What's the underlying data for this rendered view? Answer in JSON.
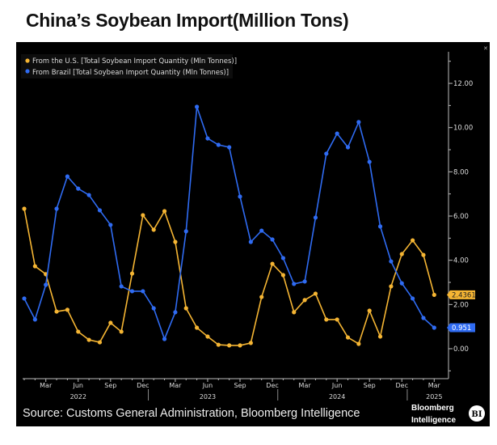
{
  "title": "China’s Soybean Import(Million Tons)",
  "source": "Source: Customs General Administration, Bloomberg Intelligence",
  "brand": {
    "line1": "Bloomberg",
    "line2": "Intelligence",
    "badge": "BI"
  },
  "chart_data": {
    "type": "line",
    "x_start": "2022-01",
    "x_end": "2025-03",
    "frequency": "monthly",
    "x_tick_labels": [
      "Mar",
      "Jun",
      "Sep",
      "Dec",
      "Mar",
      "Jun",
      "Sep",
      "Dec",
      "Mar",
      "Jun",
      "Sep",
      "Dec",
      "Mar"
    ],
    "x_year_labels": [
      "2022",
      "2023",
      "2024",
      "2025"
    ],
    "y_ticks": [
      "0.00",
      "2.00",
      "4.00",
      "6.00",
      "8.00",
      "10.00",
      "12.00"
    ],
    "ylim": [
      -1.2,
      13.4
    ],
    "y_axis_side": "right",
    "grid": false,
    "legend_position": "top-left",
    "series": [
      {
        "name": "From the U.S. [Total Soybean Import Quantity (Mln Tonnes)]",
        "color": "#f5b533",
        "last_value_label": "2.4361",
        "values": [
          6.33,
          3.73,
          3.37,
          1.68,
          1.76,
          0.77,
          0.4,
          0.29,
          1.17,
          0.77,
          3.4,
          6.04,
          5.38,
          6.22,
          4.83,
          1.83,
          0.95,
          0.55,
          0.18,
          0.15,
          0.15,
          0.26,
          2.34,
          3.84,
          3.33,
          1.65,
          2.2,
          2.49,
          1.32,
          1.32,
          0.51,
          0.22,
          1.72,
          0.55,
          2.82,
          4.28,
          4.9,
          4.24,
          2.4361
        ]
      },
      {
        "name": "From Brazil [Total Soybean Import Quantity (Mln Tonnes)]",
        "color": "#2f6bf2",
        "last_value_label": "0.951",
        "values": [
          2.27,
          1.32,
          2.89,
          6.33,
          7.79,
          7.24,
          6.95,
          6.26,
          5.6,
          2.82,
          2.6,
          2.6,
          1.83,
          0.44,
          1.65,
          5.31,
          10.94,
          9.51,
          9.22,
          9.11,
          6.88,
          4.83,
          5.34,
          4.94,
          4.1,
          2.93,
          3.04,
          5.93,
          8.82,
          9.73,
          9.11,
          10.25,
          8.45,
          5.53,
          3.95,
          2.96,
          2.27,
          1.39,
          0.951
        ]
      }
    ]
  }
}
